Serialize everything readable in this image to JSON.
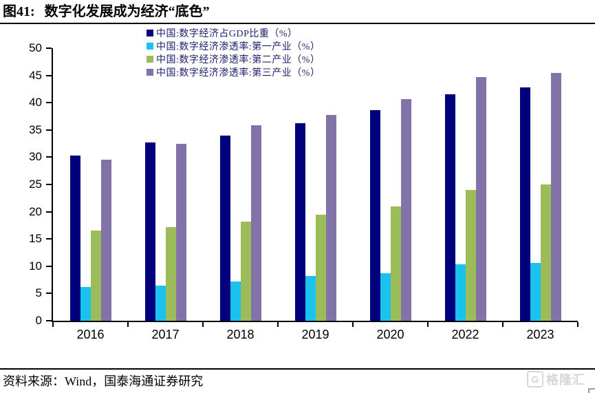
{
  "figure": {
    "label": "图41:",
    "title": "数字化发展成为经济“底色”"
  },
  "chart_data": {
    "type": "bar",
    "title": "数字化发展成为经济“底色”",
    "categories": [
      "2016",
      "2017",
      "2018",
      "2019",
      "2020",
      "2022",
      "2023"
    ],
    "series": [
      {
        "name": "中国:数字经济占GDP比重（%）",
        "color": "#01017e",
        "values": [
          30.3,
          32.7,
          34.0,
          36.2,
          38.6,
          41.5,
          42.8
        ]
      },
      {
        "name": "中国:数字经济渗透率:第一产业（%）",
        "color": "#1cc2ee",
        "values": [
          6.2,
          6.4,
          7.2,
          8.2,
          8.7,
          10.4,
          10.6
        ]
      },
      {
        "name": "中国:数字经济渗透率:第二产业（%）",
        "color": "#9cbb59",
        "values": [
          16.6,
          17.2,
          18.2,
          19.5,
          21.0,
          24.0,
          25.0
        ]
      },
      {
        "name": "中国:数字经济渗透率:第三产业（%）",
        "color": "#8172a8",
        "values": [
          29.6,
          32.5,
          35.9,
          37.8,
          40.7,
          44.7,
          45.5
        ]
      }
    ],
    "xlabel": "",
    "ylabel": "",
    "ylim": [
      0,
      50
    ],
    "yticks": [
      0,
      5,
      10,
      15,
      20,
      25,
      30,
      35,
      40,
      45,
      50
    ],
    "grid": false,
    "legend_position": "top-center"
  },
  "footer": {
    "source_text": "资料来源：Wind，国泰海通证券研究"
  },
  "watermark": {
    "icon": "G",
    "text": "格隆汇"
  }
}
